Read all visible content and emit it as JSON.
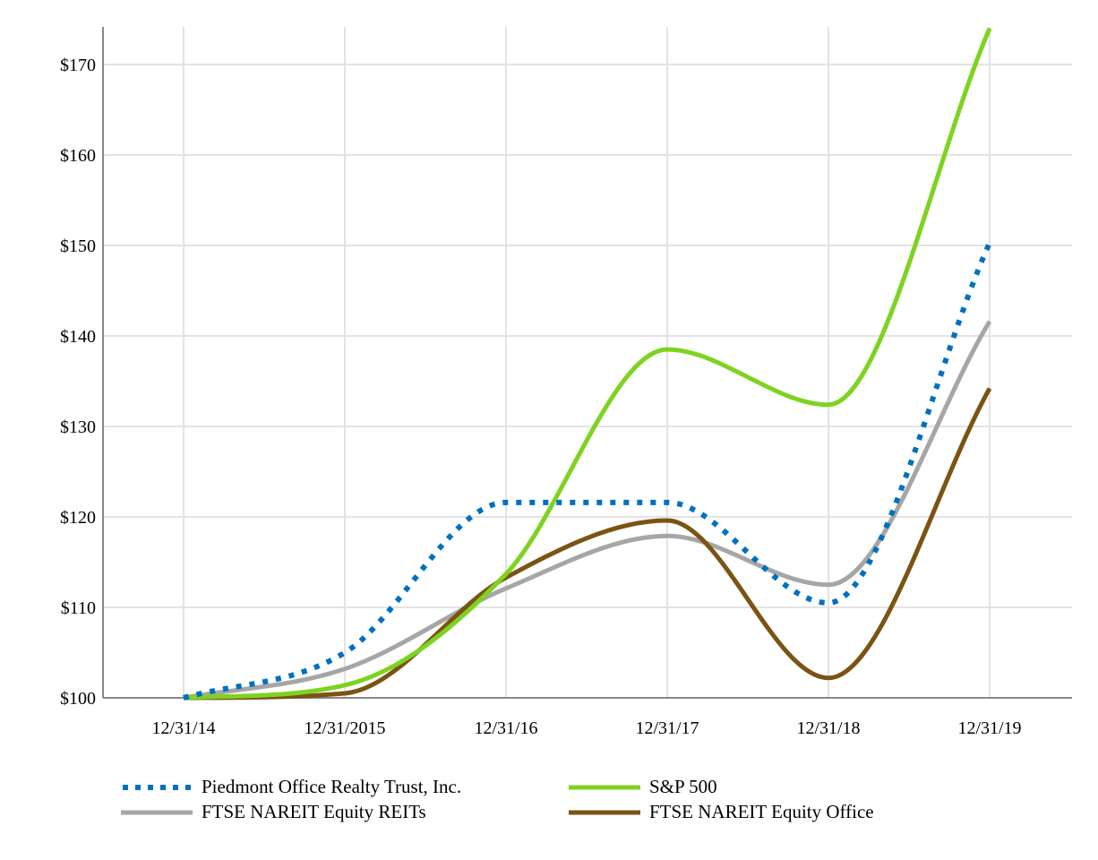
{
  "chart_data": {
    "type": "line",
    "categories": [
      "12/31/14",
      "12/31/2015",
      "12/31/16",
      "12/31/17",
      "12/31/18",
      "12/31/19"
    ],
    "ylim": [
      100,
      175
    ],
    "yticks": [
      100,
      110,
      120,
      130,
      140,
      150,
      160,
      170
    ],
    "ytick_labels": [
      "$100",
      "$110",
      "$120",
      "$130",
      "$140",
      "$150",
      "$160",
      "$170"
    ],
    "grid": true,
    "legend_position": "bottom",
    "series": [
      {
        "name": "Piedmont Office Realty Trust, Inc.",
        "color": "#0070C0",
        "style": "dotted",
        "values": [
          100,
          105.0,
          121.6,
          121.6,
          110.5,
          150.3
        ]
      },
      {
        "name": "S&P 500",
        "color": "#7ED321",
        "style": "solid",
        "values": [
          100,
          101.4,
          113.7,
          138.5,
          132.4,
          174.0
        ]
      },
      {
        "name": "FTSE NAREIT Equity REITs",
        "color": "#A6A6A6",
        "style": "solid",
        "values": [
          100,
          103.2,
          112.1,
          117.9,
          112.5,
          141.6
        ]
      },
      {
        "name": "FTSE NAREIT Equity Office",
        "color": "#7B5313",
        "style": "solid",
        "values": [
          100,
          100.5,
          113.3,
          119.6,
          102.2,
          134.2
        ]
      }
    ]
  }
}
